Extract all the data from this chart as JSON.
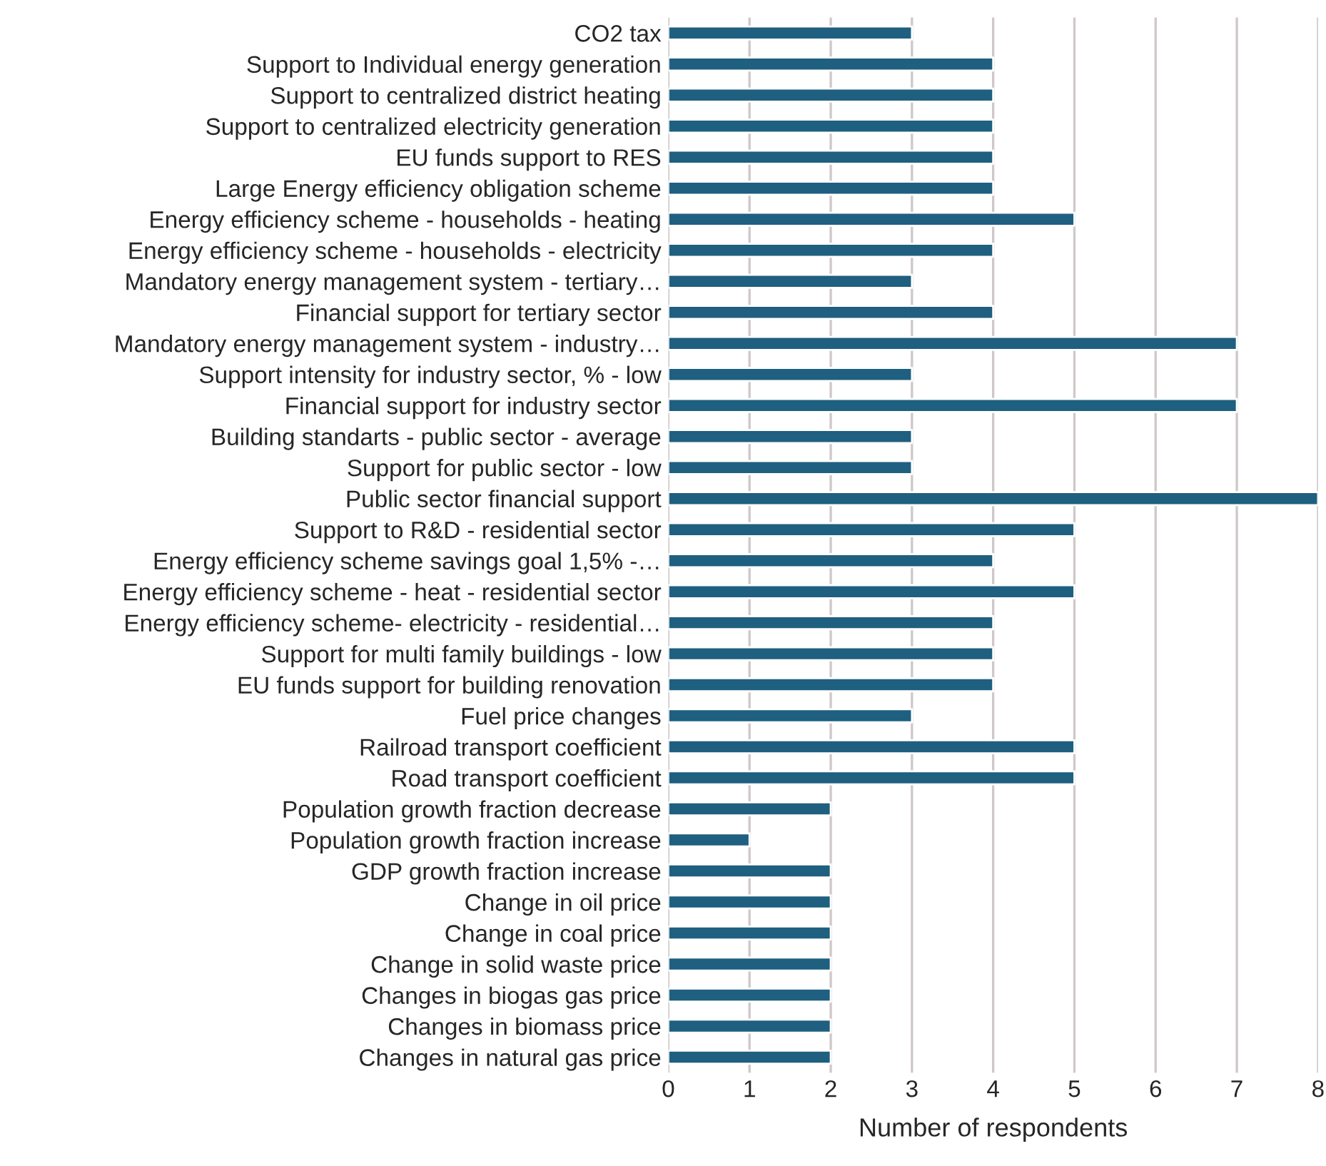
{
  "chart_data": {
    "type": "bar",
    "orientation": "horizontal",
    "xlabel": "Number of respondents",
    "categories": [
      "CO2 tax",
      "Support to Individual energy generation",
      "Support to centralized district heating",
      "Support to centralized electricity generation",
      "EU funds support to RES",
      "Large Energy efficiency obligation scheme",
      "Energy efficiency scheme - households - heating",
      "Energy efficiency scheme - households - electricity",
      "Mandatory energy management system - tertiary…",
      "Financial support for tertiary sector",
      "Mandatory energy management system - industry…",
      "Support intensity for industry sector, % - low",
      "Financial support for industry sector",
      "Building standarts - public sector - average",
      "Support for public sector - low",
      "Public sector financial support",
      "Support to R&D - residential sector",
      "Energy efficiency scheme savings goal 1,5% -…",
      "Energy efficiency scheme - heat - residential sector",
      "Energy efficiency scheme- electricity - residential…",
      "Support for multi family buildings - low",
      "EU funds support for building renovation",
      "Fuel price changes",
      "Railroad transport coefficient",
      "Road transport coefficient",
      "Population growth fraction decrease",
      "Population growth fraction increase",
      "GDP growth fraction increase",
      "Change in oil price",
      "Change in coal price",
      "Change in solid waste price",
      "Changes in biogas gas price",
      "Changes in biomass price",
      "Changes in natural gas price"
    ],
    "values": [
      3,
      4,
      4,
      4,
      4,
      4,
      5,
      4,
      3,
      4,
      7,
      3,
      7,
      3,
      3,
      8,
      5,
      4,
      5,
      4,
      4,
      4,
      3,
      5,
      5,
      2,
      1,
      2,
      2,
      2,
      2,
      2,
      2,
      2
    ],
    "color": "#1f5f7f",
    "xlim": [
      0,
      8
    ],
    "xticks": [
      0,
      1,
      2,
      3,
      4,
      5,
      6,
      7,
      8
    ],
    "grid": "x"
  }
}
